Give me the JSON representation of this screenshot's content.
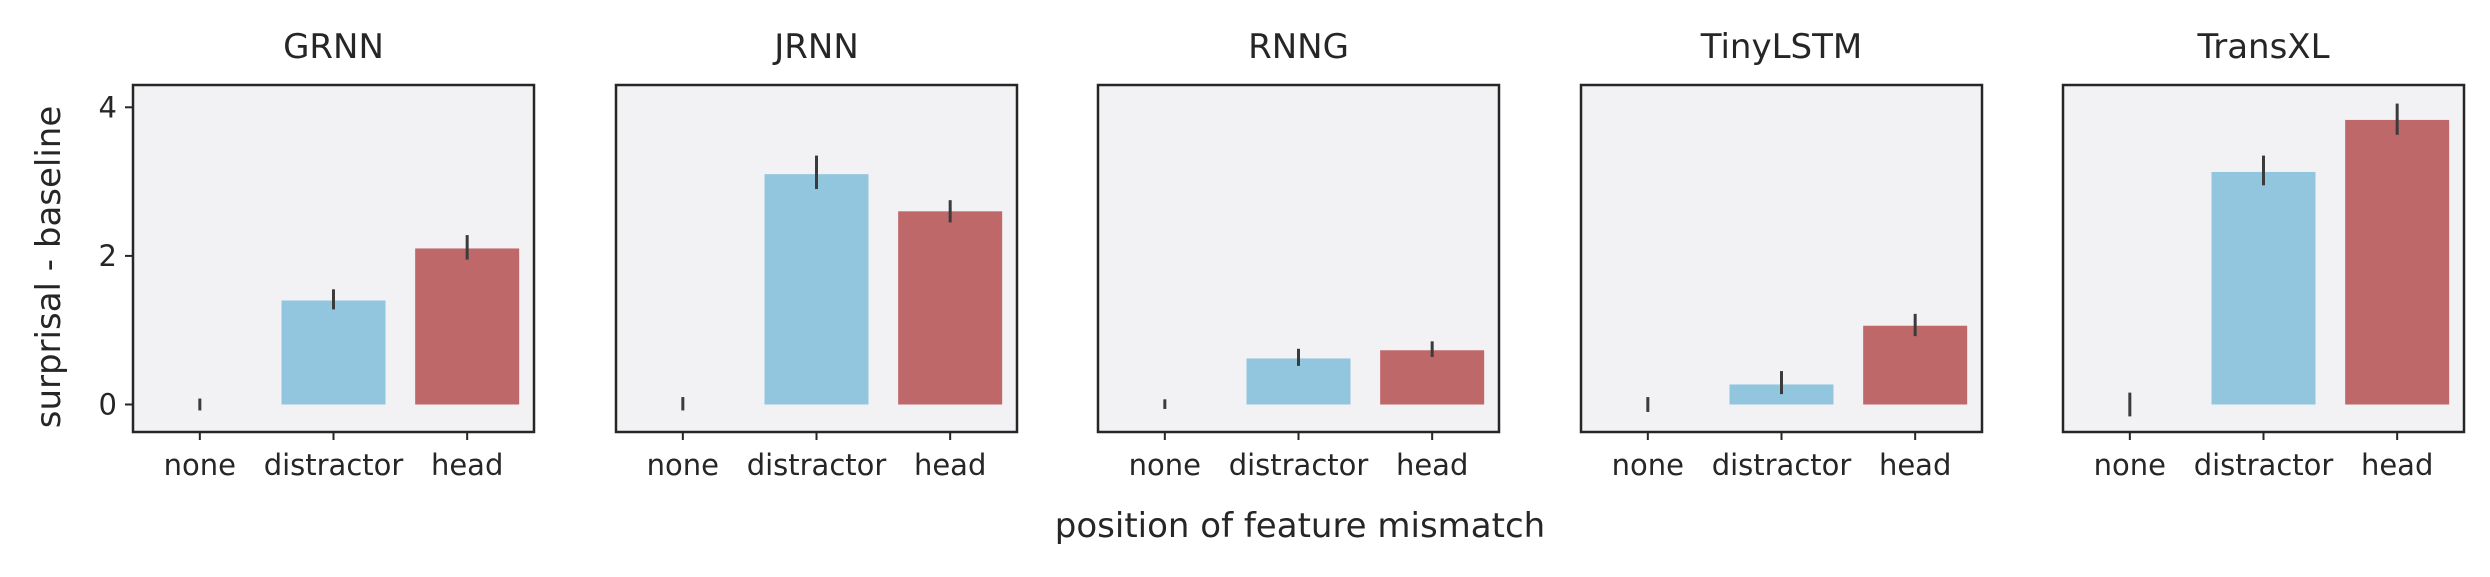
{
  "figure": {
    "ylabel": "surprisal - baseline",
    "xlabel": "position of feature mismatch"
  },
  "chart_data": [
    {
      "type": "bar",
      "title": "GRNN",
      "categories": [
        "none",
        "distractor",
        "head"
      ],
      "values": [
        0.0,
        1.4,
        2.1
      ],
      "error": [
        [
          -0.08,
          0.08
        ],
        [
          1.28,
          1.55
        ],
        [
          1.95,
          2.28
        ]
      ],
      "ylim": [
        -0.37,
        4.3
      ],
      "yticks": [
        0,
        2,
        4
      ],
      "colors": [
        "#92c6df",
        "#92c6df",
        "#bf6869"
      ]
    },
    {
      "type": "bar",
      "title": "JRNN",
      "categories": [
        "none",
        "distractor",
        "head"
      ],
      "values": [
        0.0,
        3.1,
        2.6
      ],
      "error": [
        [
          -0.08,
          0.1
        ],
        [
          2.9,
          3.35
        ],
        [
          2.45,
          2.75
        ]
      ],
      "ylim": [
        -0.37,
        4.3
      ],
      "yticks": [
        0,
        2,
        4
      ],
      "colors": [
        "#92c6df",
        "#92c6df",
        "#bf6869"
      ]
    },
    {
      "type": "bar",
      "title": "RNNG",
      "categories": [
        "none",
        "distractor",
        "head"
      ],
      "values": [
        0.0,
        0.62,
        0.73
      ],
      "error": [
        [
          -0.06,
          0.07
        ],
        [
          0.52,
          0.75
        ],
        [
          0.64,
          0.85
        ]
      ],
      "ylim": [
        -0.37,
        4.3
      ],
      "yticks": [
        0,
        2,
        4
      ],
      "colors": [
        "#92c6df",
        "#92c6df",
        "#bf6869"
      ]
    },
    {
      "type": "bar",
      "title": "TinyLSTM",
      "categories": [
        "none",
        "distractor",
        "head"
      ],
      "values": [
        0.0,
        0.27,
        1.06
      ],
      "error": [
        [
          -0.1,
          0.1
        ],
        [
          0.14,
          0.45
        ],
        [
          0.92,
          1.22
        ]
      ],
      "ylim": [
        -0.37,
        4.3
      ],
      "yticks": [
        0,
        2,
        4
      ],
      "colors": [
        "#92c6df",
        "#92c6df",
        "#bf6869"
      ]
    },
    {
      "type": "bar",
      "title": "TransXL",
      "categories": [
        "none",
        "distractor",
        "head"
      ],
      "values": [
        0.0,
        3.13,
        3.83
      ],
      "error": [
        [
          -0.16,
          0.16
        ],
        [
          2.95,
          3.35
        ],
        [
          3.63,
          4.05
        ]
      ],
      "ylim": [
        -0.37,
        4.3
      ],
      "yticks": [
        0,
        2,
        4
      ],
      "colors": [
        "#92c6df",
        "#92c6df",
        "#bf6869"
      ]
    }
  ]
}
